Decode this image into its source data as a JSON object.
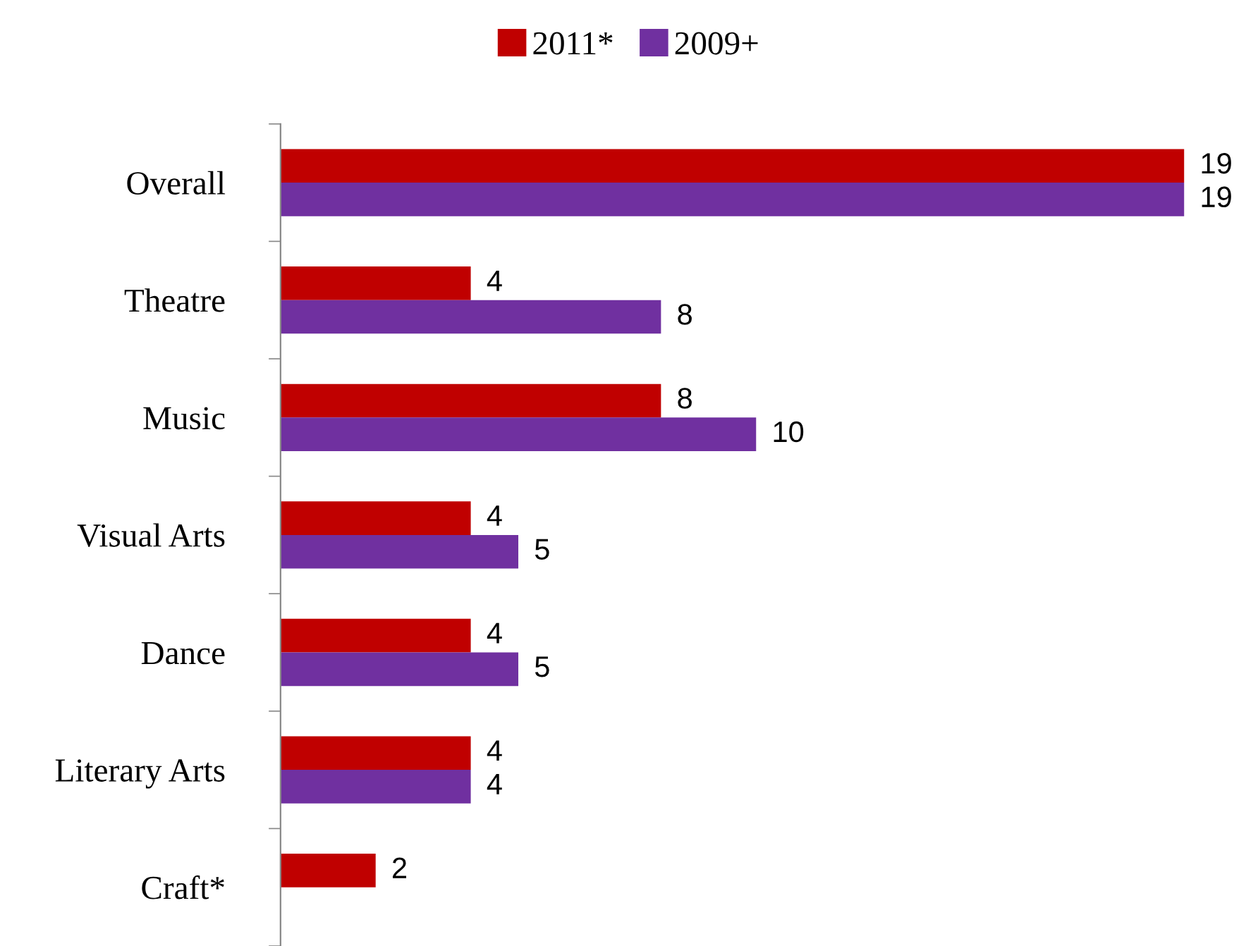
{
  "chart_data": {
    "type": "bar",
    "orientation": "horizontal",
    "categories": [
      "Overall",
      "Theatre",
      "Music",
      "Visual Arts",
      "Dance",
      "Literary Arts",
      "Craft*"
    ],
    "series": [
      {
        "name": "2011*",
        "color": "#c00000",
        "values": [
          19,
          4,
          8,
          4,
          4,
          4,
          2
        ]
      },
      {
        "name": "2009+",
        "color": "#7030a0",
        "values": [
          19,
          8,
          10,
          5,
          5,
          4,
          null
        ]
      }
    ],
    "data_labels": true,
    "legend": "top",
    "grid": false
  }
}
